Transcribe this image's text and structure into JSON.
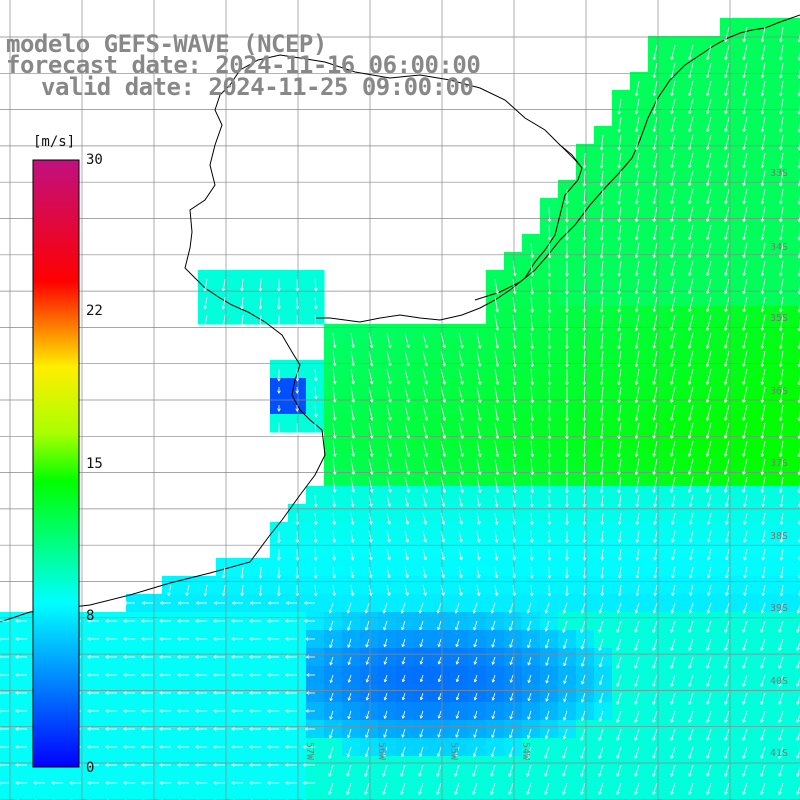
{
  "titles": {
    "line1": "modelo GEFS-WAVE (NCEP)",
    "line2": "forecast date: 2024-11-16 06:00:00",
    "line3": "valid date: 2024-11-25 09:00:00"
  },
  "colorbar": {
    "unit": "[m/s]",
    "ticks": [
      "30",
      "22",
      "15",
      "8",
      "0"
    ],
    "tick_values": [
      30,
      22,
      15,
      8,
      0
    ],
    "colors": [
      "#0000ff",
      "#00ffff",
      "#00ff00",
      "#ffff00",
      "#ff0000",
      "#c0007f"
    ]
  },
  "map_labels": {
    "latitudes": [
      "33S",
      "34S",
      "35S",
      "36S",
      "37S",
      "38S",
      "39S",
      "40S",
      "41S"
    ],
    "longitudes": [
      "57W",
      "56W",
      "55W",
      "54W"
    ]
  },
  "field": {
    "variable": "wind speed",
    "region": "Rio de la Plata / South Atlantic",
    "wind_direction": "mostly southward over the ocean, westward along the southern edge"
  },
  "colors": {
    "land": "#ffffff",
    "grid": "#888888",
    "coast": "#000000",
    "arrows": "#ffffff",
    "title_text": "#888888"
  }
}
